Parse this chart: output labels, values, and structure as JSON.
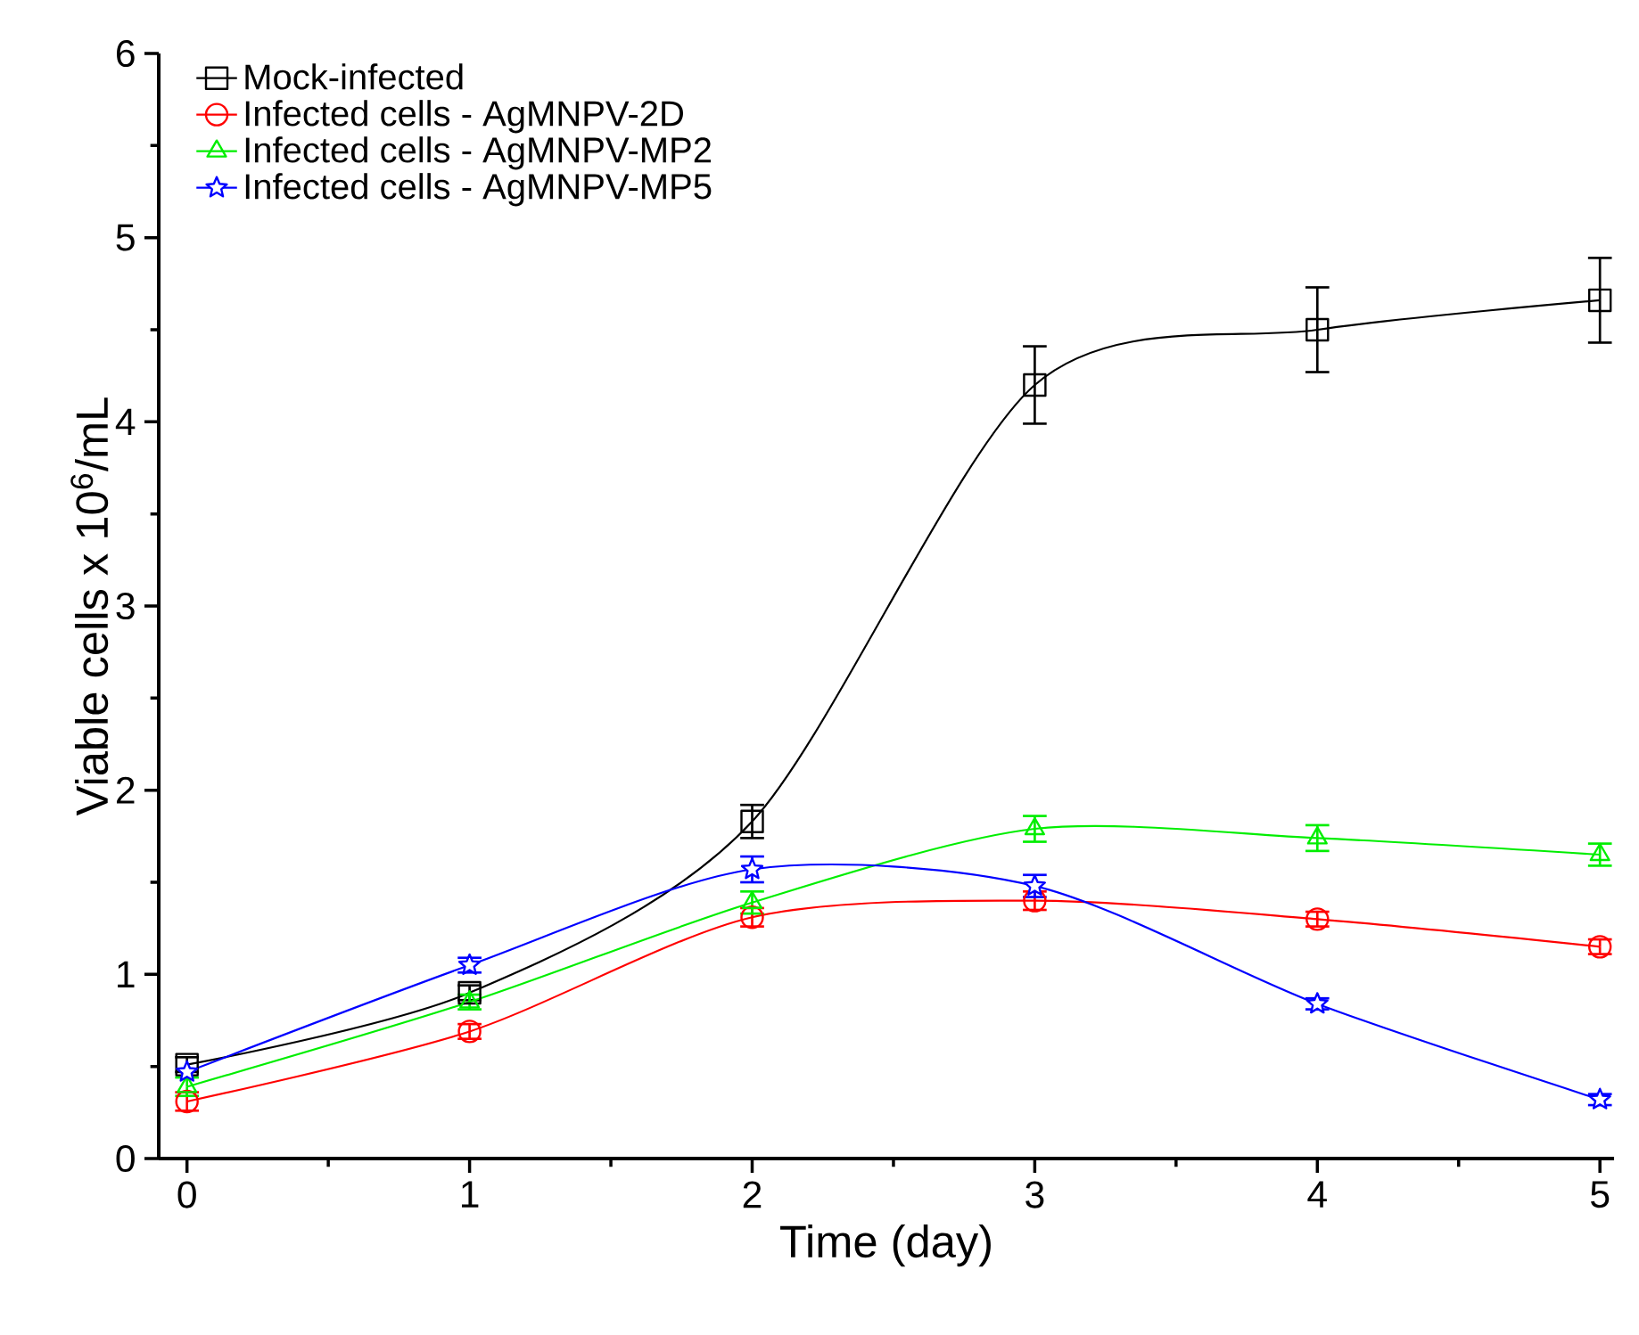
{
  "chart_data": {
    "type": "line",
    "xlabel": "Time (day)",
    "ylabel": "Viable cells x 10$^{6}$/mL",
    "x": [
      0,
      1,
      2,
      3,
      4,
      5
    ],
    "series": [
      {
        "name": "Mock-infected",
        "color": "#000000",
        "marker": "square",
        "values": [
          0.51,
          0.9,
          1.83,
          4.2,
          4.5,
          4.66
        ],
        "errors": [
          0.04,
          0.04,
          0.09,
          0.21,
          0.23,
          0.23
        ]
      },
      {
        "name": "Infected cells - AgMNPV-2D",
        "color": "#ff0000",
        "marker": "circle",
        "values": [
          0.31,
          0.69,
          1.31,
          1.4,
          1.3,
          1.15
        ],
        "errors": [
          0.05,
          0.04,
          0.05,
          0.05,
          0.04,
          0.04
        ]
      },
      {
        "name": "Infected cells - AgMNPV-MP2",
        "color": "#00ee00",
        "marker": "triangle",
        "values": [
          0.39,
          0.85,
          1.39,
          1.79,
          1.74,
          1.65
        ],
        "errors": [
          0.05,
          0.04,
          0.06,
          0.07,
          0.07,
          0.06
        ]
      },
      {
        "name": "Infected cells -  AgMNPV-MP5",
        "color": "#0000ff",
        "marker": "star",
        "values": [
          0.47,
          1.05,
          1.57,
          1.48,
          0.84,
          0.32
        ],
        "errors": [
          null,
          0.04,
          0.07,
          0.06,
          0.03,
          0.03
        ]
      }
    ],
    "xlim": [
      -0.1,
      5.05
    ],
    "ylim": [
      0,
      6
    ],
    "xticks": [
      0,
      1,
      2,
      3,
      4,
      5
    ],
    "yticks": [
      0,
      1,
      2,
      3,
      4,
      5,
      6
    ],
    "legend": "top left",
    "grid": false,
    "line_style": "solid"
  }
}
